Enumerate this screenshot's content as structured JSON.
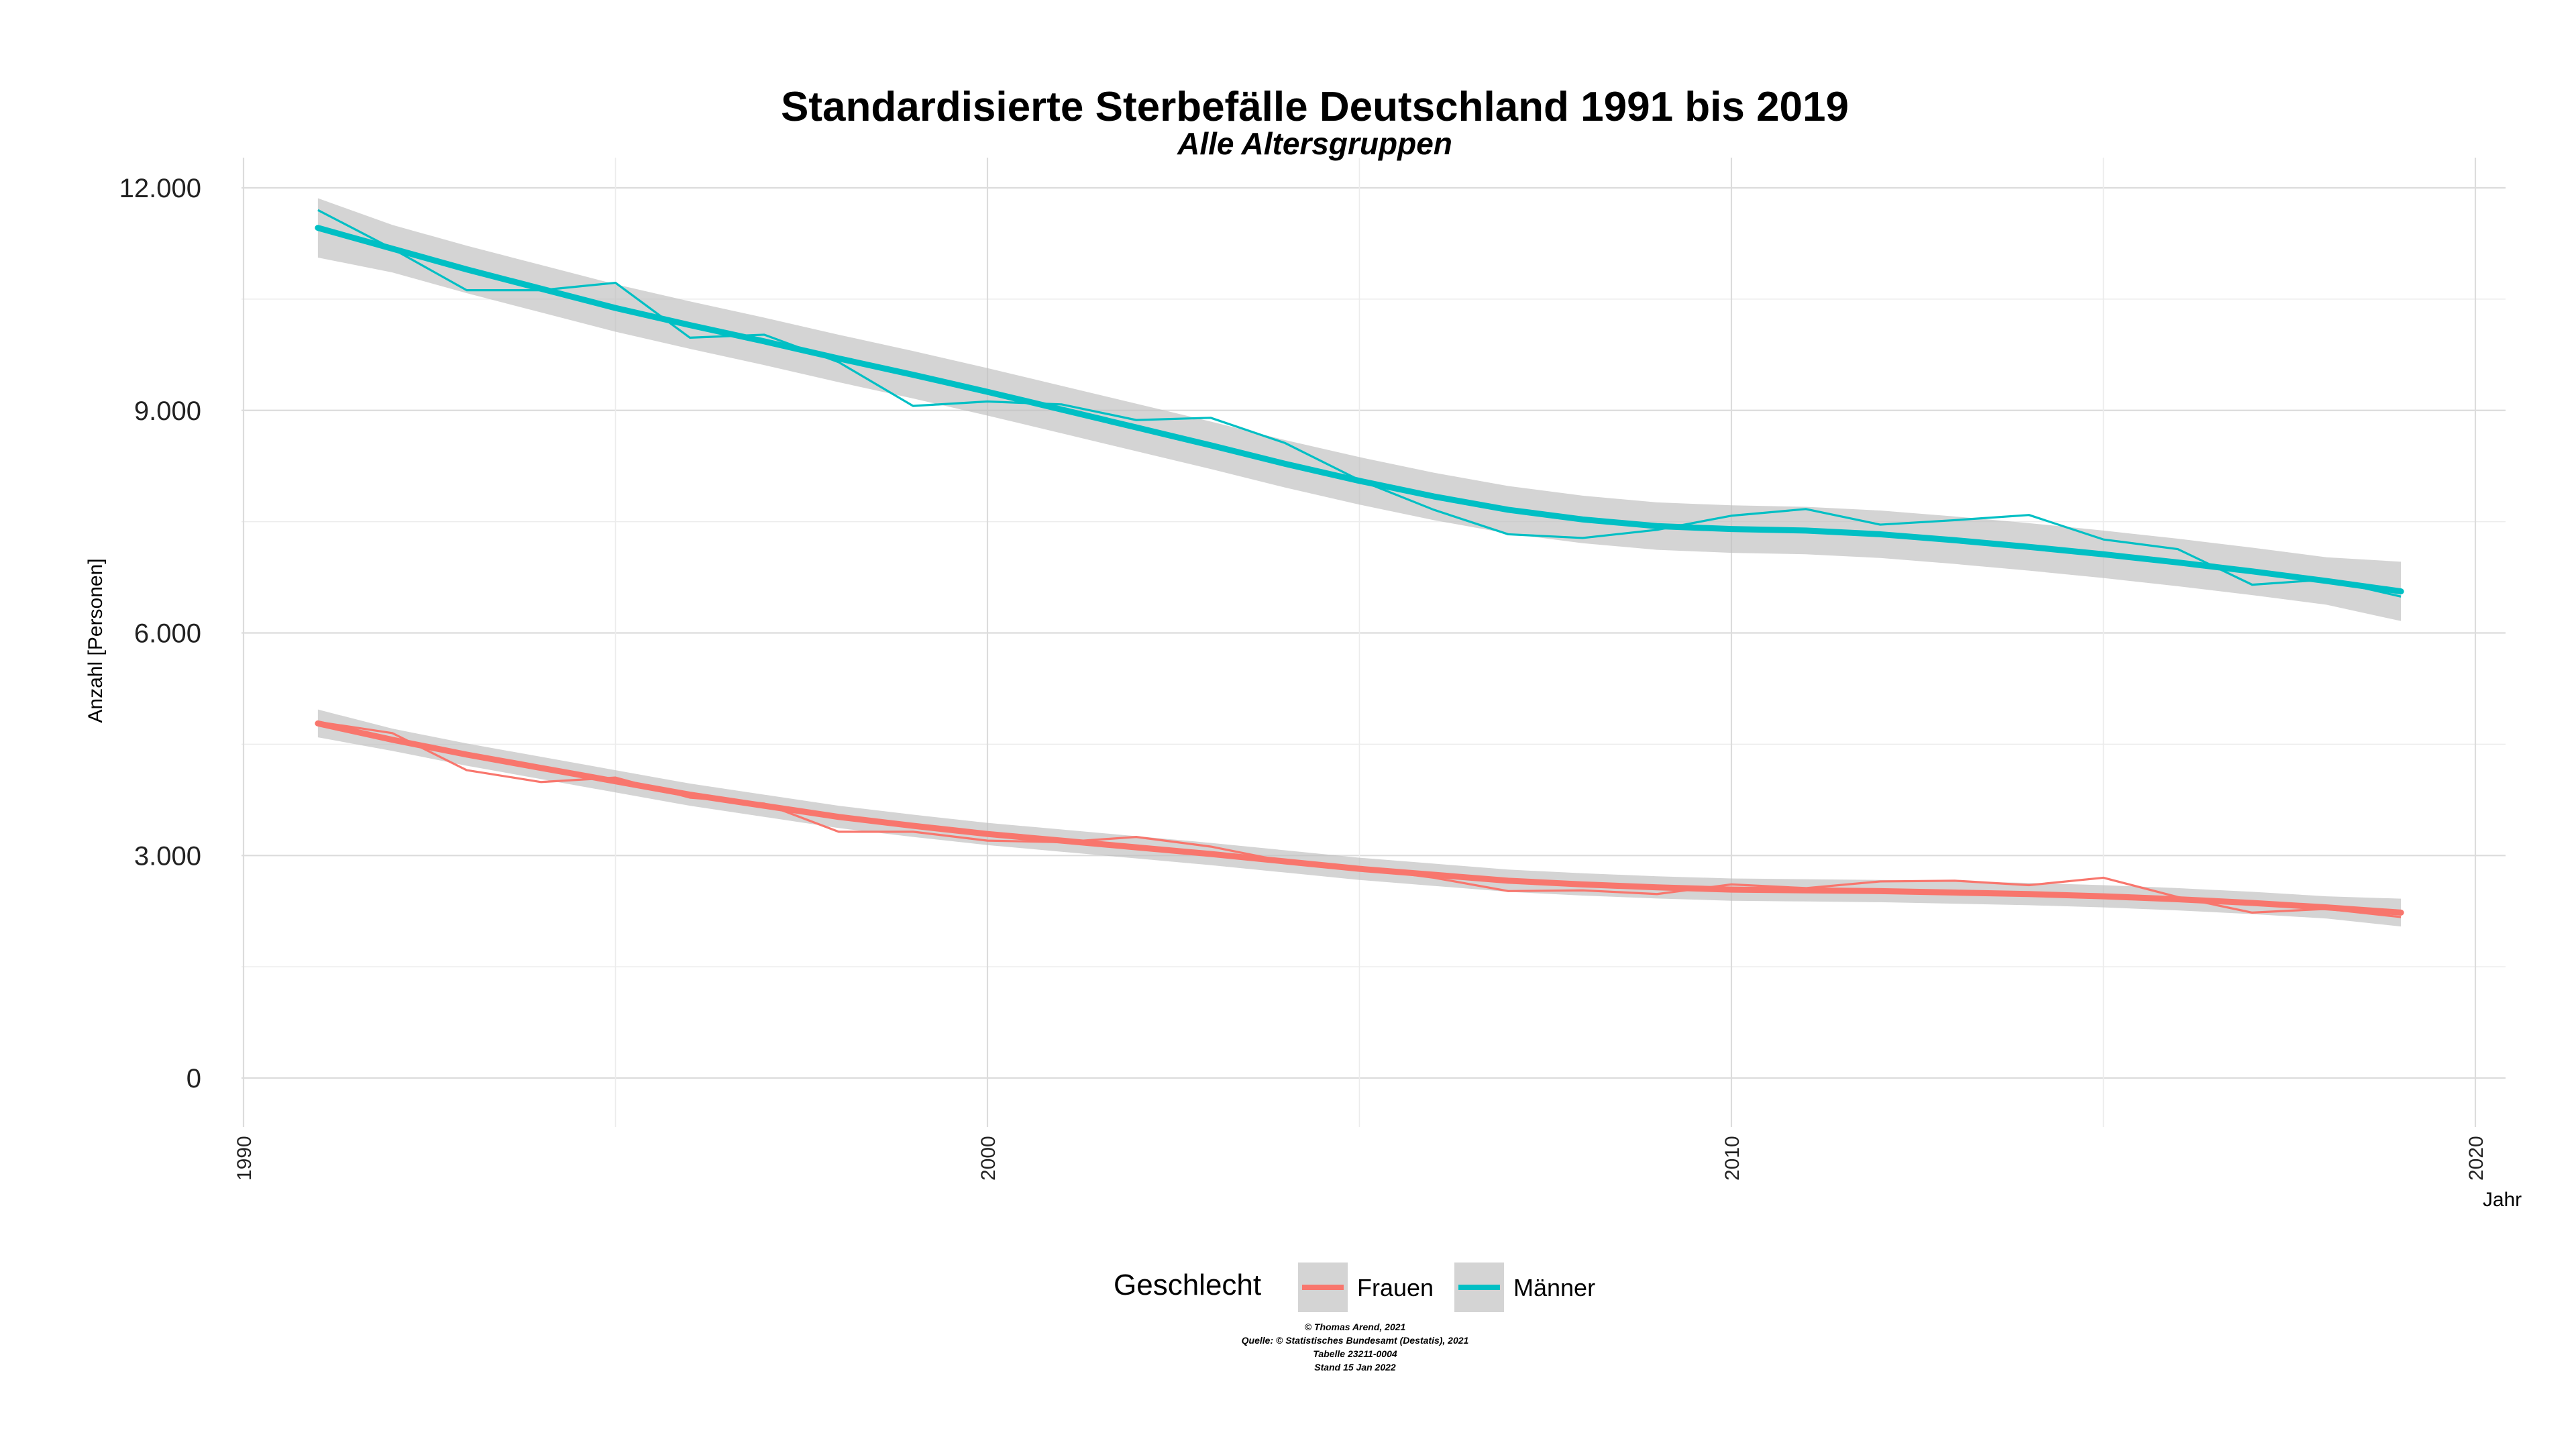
{
  "chart_data": {
    "type": "line",
    "title": "Standardisierte Sterbefälle Deutschland 1991 bis 2019",
    "subtitle": "Alle Altersgruppen",
    "xlabel": "Jahr",
    "ylabel": "Anzahl [Personen]",
    "xlim": [
      1990,
      2020
    ],
    "ylim": [
      0,
      12000
    ],
    "xticks": [
      "1990",
      "2000",
      "2010",
      "2020"
    ],
    "yticks": [
      "0",
      "3.000",
      "6.000",
      "9.000",
      "12.000"
    ],
    "grid": true,
    "legend_position": "bottom",
    "legend_title": "Geschlecht",
    "x": [
      1991,
      1992,
      1993,
      1994,
      1995,
      1996,
      1997,
      1998,
      1999,
      2000,
      2001,
      2002,
      2003,
      2004,
      2005,
      2006,
      2007,
      2008,
      2009,
      2010,
      2011,
      2012,
      2013,
      2014,
      2015,
      2016,
      2017,
      2018,
      2019
    ],
    "series": [
      {
        "name": "Frauen",
        "color": "#F8766D",
        "values": [
          4800,
          4650,
          4150,
          3990,
          4050,
          3780,
          3700,
          3320,
          3320,
          3200,
          3180,
          3250,
          3120,
          2920,
          2830,
          2700,
          2520,
          2530,
          2480,
          2610,
          2560,
          2650,
          2660,
          2600,
          2700,
          2440,
          2230,
          2280,
          2170
        ],
        "smooth": [
          4780,
          4560,
          4360,
          4180,
          4000,
          3820,
          3670,
          3520,
          3400,
          3290,
          3200,
          3110,
          3020,
          2920,
          2820,
          2740,
          2660,
          2610,
          2570,
          2540,
          2530,
          2520,
          2500,
          2480,
          2450,
          2410,
          2360,
          2300,
          2230
        ],
        "band_width": 150
      },
      {
        "name": "Männer",
        "color": "#00BFC4",
        "values": [
          11700,
          11180,
          10620,
          10620,
          10720,
          9980,
          10020,
          9650,
          9060,
          9120,
          9080,
          8870,
          8900,
          8560,
          8060,
          7660,
          7330,
          7280,
          7390,
          7580,
          7670,
          7460,
          7520,
          7590,
          7260,
          7130,
          6650,
          6720,
          6490
        ],
        "smooth": [
          11460,
          11180,
          10900,
          10640,
          10380,
          10150,
          9930,
          9700,
          9480,
          9250,
          9010,
          8770,
          8530,
          8280,
          8050,
          7840,
          7660,
          7530,
          7440,
          7400,
          7380,
          7330,
          7250,
          7160,
          7060,
          6950,
          6830,
          6700,
          6560
        ],
        "band_width": 320
      }
    ]
  },
  "caption": [
    "© Thomas Arend, 2021",
    "Quelle: © Statistisches Bundesamt (Destatis), 2021",
    "Tabelle 23211-0004",
    "Stand 15 Jan 2022"
  ]
}
